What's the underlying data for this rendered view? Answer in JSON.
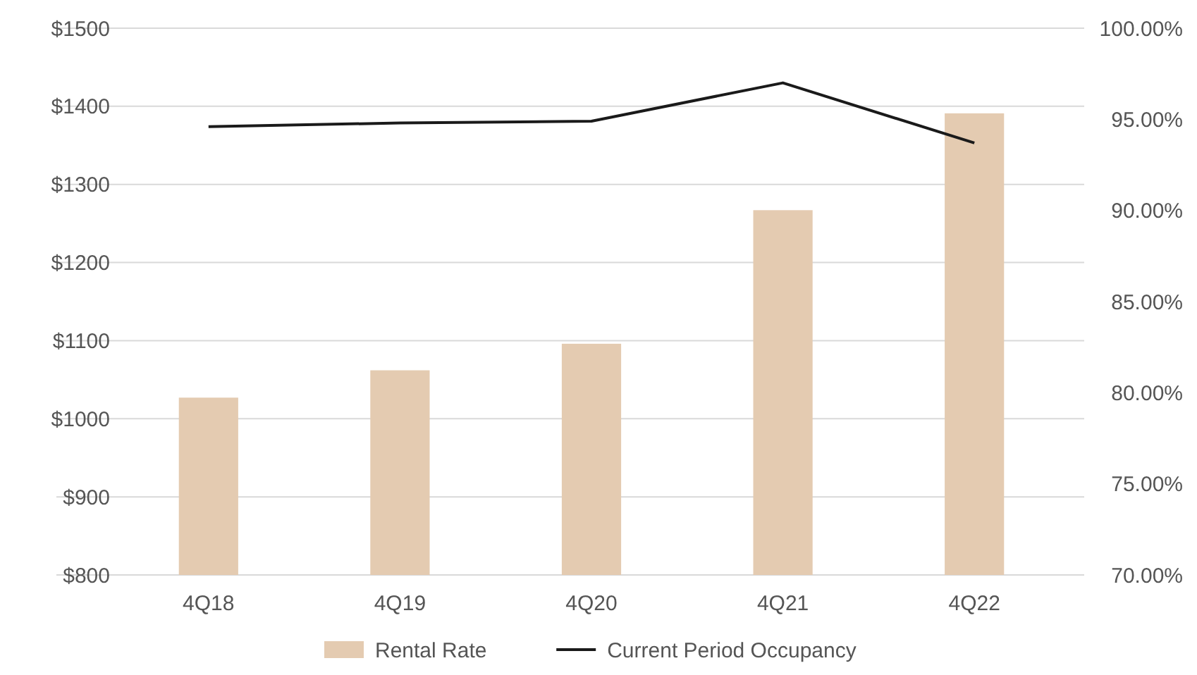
{
  "chart_data": {
    "type": "bar",
    "categories": [
      "4Q18",
      "4Q19",
      "4Q20",
      "4Q21",
      "4Q22"
    ],
    "series": [
      {
        "name": "Rental Rate",
        "color": "#e4cbb1",
        "values": [
          1027,
          1062,
          1096,
          1267,
          1391
        ]
      },
      {
        "name": "Current Period Occupancy",
        "type": "line",
        "axis": "y2",
        "color": "#1a1a1a",
        "values": [
          94.6,
          94.8,
          94.9,
          97.0,
          93.7
        ]
      }
    ],
    "ylim": [
      800,
      1500
    ],
    "yticks": [
      {
        "value": 800,
        "label": "$800"
      },
      {
        "value": 900,
        "label": "$900"
      },
      {
        "value": 1000,
        "label": "$1000"
      },
      {
        "value": 1100,
        "label": "$1100"
      },
      {
        "value": 1200,
        "label": "$1200"
      },
      {
        "value": 1300,
        "label": "$1300"
      },
      {
        "value": 1400,
        "label": "$1400"
      },
      {
        "value": 1500,
        "label": "$1500"
      }
    ],
    "y2lim": [
      70,
      100
    ],
    "y2ticks": [
      {
        "value": 70,
        "label": "70.00%"
      },
      {
        "value": 75,
        "label": "75.00%"
      },
      {
        "value": 80,
        "label": "80.00%"
      },
      {
        "value": 85,
        "label": "85.00%"
      },
      {
        "value": 90,
        "label": "90.00%"
      },
      {
        "value": 95,
        "label": "95.00%"
      },
      {
        "value": 100,
        "label": "100.00%"
      }
    ],
    "grid": "y",
    "legend": "bottom",
    "marker": "none",
    "line_style": "solid"
  }
}
